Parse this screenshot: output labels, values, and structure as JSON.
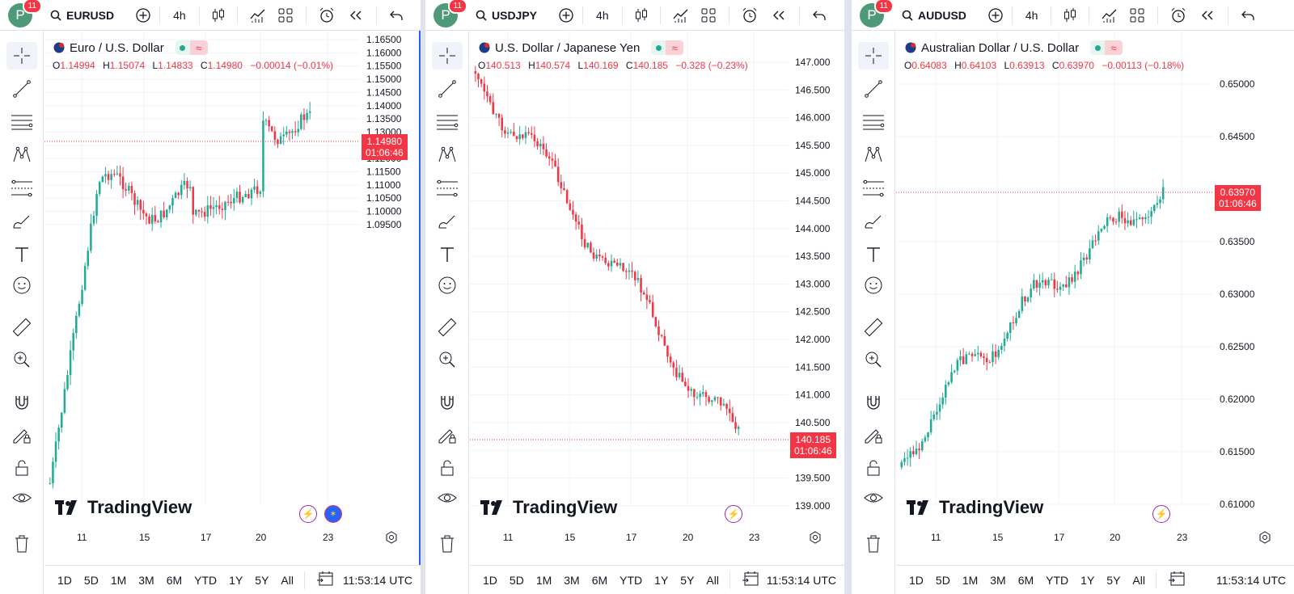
{
  "user": {
    "avatar_letter": "P",
    "notifications": "11"
  },
  "toolbar": {
    "interval": "4h"
  },
  "time_ranges": [
    "1D",
    "5D",
    "1M",
    "3M",
    "6M",
    "YTD",
    "1Y",
    "5Y",
    "All"
  ],
  "clock": "11:53:14 UTC",
  "logo_text": "TradingView",
  "countdown": "01:06:46",
  "panels": [
    {
      "symbol": "EURUSD",
      "name": "Euro / U.S. Dollar",
      "ohlc": {
        "o_label": "O",
        "o": "1.14994",
        "h_label": "H",
        "h": "1.15074",
        "l_label": "L",
        "l": "1.14833",
        "c_label": "C",
        "c": "1.14980",
        "chg": "−0.00014 (−0.01%)"
      },
      "last_price": "1.14980",
      "price_ticks": [
        "1.16500",
        "1.16000",
        "1.15500",
        "1.15000",
        "1.14500",
        "1.14000",
        "1.13500",
        "1.13000",
        "1.12500",
        "1.12000",
        "1.11500",
        "1.11000",
        "1.10500",
        "1.10000",
        "1.09500"
      ],
      "x_labels": [
        "11",
        "15",
        "17",
        "20",
        "23"
      ]
    },
    {
      "symbol": "USDJPY",
      "name": "U.S. Dollar / Japanese Yen",
      "ohlc": {
        "o_label": "O",
        "o": "140.513",
        "h_label": "H",
        "h": "140.574",
        "l_label": "L",
        "l": "140.169",
        "c_label": "C",
        "c": "140.185",
        "chg": "−0.328 (−0.23%)"
      },
      "last_price": "140.185",
      "price_ticks": [
        "147.000",
        "146.500",
        "146.000",
        "145.500",
        "145.000",
        "144.500",
        "144.000",
        "143.500",
        "143.000",
        "142.500",
        "142.000",
        "141.500",
        "141.000",
        "140.500",
        "140.000",
        "139.500",
        "139.000"
      ],
      "x_labels": [
        "11",
        "15",
        "17",
        "20",
        "23"
      ]
    },
    {
      "symbol": "AUDUSD",
      "name": "Australian Dollar / U.S. Dollar",
      "ohlc": {
        "o_label": "O",
        "o": "0.64083",
        "h_label": "H",
        "h": "0.64103",
        "l_label": "L",
        "l": "0.63913",
        "c_label": "C",
        "c": "0.63970",
        "chg": "−0.00113 (−0.18%)"
      },
      "last_price": "0.63970",
      "price_ticks": [
        "0.65000",
        "0.64500",
        "0.64000",
        "0.63500",
        "0.63000",
        "0.62500",
        "0.62000",
        "0.61500",
        "0.61000"
      ],
      "x_labels": [
        "11",
        "15",
        "17",
        "20",
        "23"
      ]
    }
  ],
  "colors": {
    "up": "#22ab94",
    "down": "#f23645",
    "accent": "#2962ff"
  }
}
